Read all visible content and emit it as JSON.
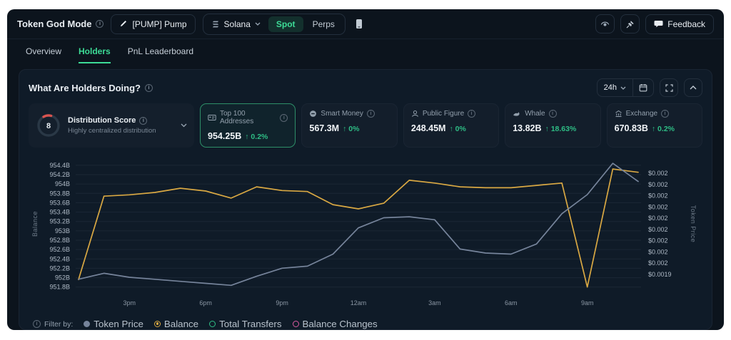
{
  "colors": {
    "app_bg": "#0C141D",
    "panel_bg": "#0F1B28",
    "card_bg": "#141F2C",
    "border": "#232F3D",
    "grid": "#1B2735",
    "text": "#E9EEF3",
    "muted": "#93A0AD",
    "dim": "#6E7B89",
    "green": "#2EBD85",
    "bright_green": "#3DDC97",
    "yellow": "#D9A843",
    "slate": "#76849B",
    "pink": "#D95BA0",
    "red": "#D9534F"
  },
  "topbar": {
    "title": "Token God Mode",
    "token_pill": "[PUMP] Pump",
    "chain": "Solana",
    "market_tabs": [
      "Spot",
      "Perps"
    ],
    "feedback_label": "Feedback"
  },
  "tabs": [
    {
      "label": "Overview"
    },
    {
      "label": "Holders"
    },
    {
      "label": "PnL Leaderboard"
    }
  ],
  "panel": {
    "title": "What Are Holders Doing?",
    "timeframe": "24h",
    "distribution": {
      "score": "8",
      "title": "Distribution Score",
      "subtitle": "Highly centralized distribution"
    },
    "cards": [
      {
        "label": "Top 100 Addresses",
        "value": "954.25B",
        "change": "↑ 0.2%"
      },
      {
        "label": "Smart Money",
        "value": "567.3M",
        "change": "↑ 0%"
      },
      {
        "label": "Public Figure",
        "value": "248.45M",
        "change": "↑ 0%"
      },
      {
        "label": "Whale",
        "value": "13.82B",
        "change": "↑ 18.63%"
      },
      {
        "label": "Exchange",
        "value": "670.83B",
        "change": "↑ 0.2%"
      }
    ],
    "legend_label": "Filter by:"
  },
  "chart_data": {
    "type": "line",
    "title": "What Are Holders Doing?",
    "x": [
      "1pm",
      "2pm",
      "3pm",
      "4pm",
      "5pm",
      "6pm",
      "7pm",
      "8pm",
      "9pm",
      "10pm",
      "11pm",
      "12am",
      "1am",
      "2am",
      "3am",
      "4am",
      "5am",
      "6am",
      "7am",
      "8am",
      "9am",
      "10am",
      "11am"
    ],
    "x_tick_labels": [
      "3pm",
      "6pm",
      "9pm",
      "12am",
      "3am",
      "6am",
      "9am"
    ],
    "x_tick_indices": [
      2,
      5,
      8,
      11,
      14,
      17,
      20
    ],
    "left_axis": {
      "title": "Balance",
      "domain": [
        951.75,
        954.55
      ],
      "tick_values": [
        954.4,
        954.2,
        954.0,
        953.8,
        953.6,
        953.4,
        953.2,
        953.0,
        952.8,
        952.6,
        952.4,
        952.2,
        952.0,
        951.8
      ],
      "tick_labels": [
        "954.4B",
        "954.2B",
        "954B",
        "953.8B",
        "953.6B",
        "953.4B",
        "953.2B",
        "953B",
        "952.8B",
        "952.6B",
        "952.4B",
        "952.2B",
        "952B",
        "951.8B"
      ]
    },
    "right_axis": {
      "title": "Token Price",
      "domain": [
        0.001885,
        0.002015
      ],
      "tick_values": [
        0.002,
        0.0019889,
        0.0019778,
        0.0019667,
        0.0019556,
        0.0019444,
        0.0019333,
        0.0019222,
        0.0019111,
        0.0019
      ],
      "tick_labels": [
        "$0.002",
        "$0.002",
        "$0.002",
        "$0.002",
        "$0.002",
        "$0.002",
        "$0.002",
        "$0.002",
        "$0.002",
        "$0.0019"
      ]
    },
    "series": [
      {
        "name": "Balance",
        "axis": "left",
        "color": "#D9A843",
        "values": [
          951.96,
          953.74,
          953.77,
          953.82,
          953.91,
          953.85,
          953.7,
          953.94,
          953.86,
          953.84,
          953.56,
          953.47,
          953.59,
          954.08,
          954.02,
          953.94,
          953.92,
          953.92,
          953.97,
          954.02,
          951.8,
          954.32,
          954.25
        ]
      },
      {
        "name": "Token Price",
        "axis": "right",
        "color": "#76849B",
        "values": [
          0.001895,
          0.001901,
          0.001897,
          0.001895,
          0.001893,
          0.001891,
          0.001889,
          0.001898,
          0.001906,
          0.001908,
          0.00192,
          0.001946,
          0.001956,
          0.001957,
          0.001954,
          0.001925,
          0.001921,
          0.00192,
          0.00193,
          0.00196,
          0.001979,
          0.00201,
          0.001992
        ]
      }
    ],
    "legend_styles": [
      {
        "name": "Token Price",
        "color": "#76849B",
        "fill": "solid"
      },
      {
        "name": "Balance",
        "color": "#D9A843",
        "fill": "selected"
      },
      {
        "name": "Total Transfers",
        "color": "#2EBD85",
        "fill": "hollow"
      },
      {
        "name": "Balance Changes",
        "color": "#D95BA0",
        "fill": "hollow"
      }
    ]
  }
}
